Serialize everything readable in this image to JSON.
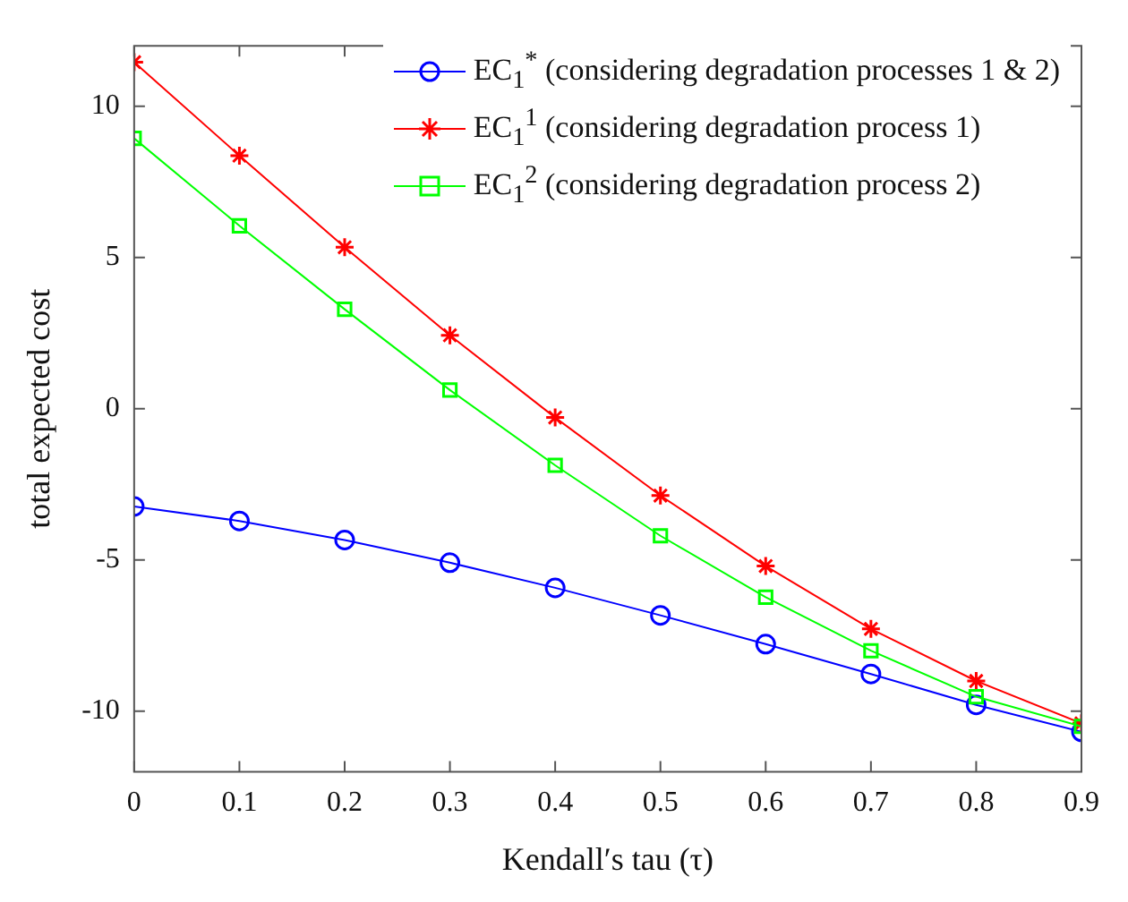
{
  "chart_data": {
    "type": "line",
    "xlabel": "Kendall′s tau (τ)",
    "ylabel": "total expected cost",
    "x": [
      0,
      0.1,
      0.2,
      0.3,
      0.4,
      0.5,
      0.6,
      0.7,
      0.8,
      0.9
    ],
    "xlim": [
      0,
      0.9
    ],
    "xticks": [
      0,
      0.1,
      0.2,
      0.3,
      0.4,
      0.5,
      0.6,
      0.7,
      0.8,
      0.9
    ],
    "ylim": [
      -12,
      12
    ],
    "yticks": [
      -10,
      -5,
      0,
      5,
      10
    ],
    "grid": false,
    "legend": "top right",
    "line_style": "solid",
    "series": [
      {
        "name": "EC$_{1}$$^{*}$ (considering degradation processes 1 & 2)",
        "color": "#0000ff",
        "marker": "circle",
        "values": [
          -3.23,
          -3.71,
          -4.34,
          -5.09,
          -5.92,
          -6.83,
          -7.78,
          -8.77,
          -9.79,
          -10.68
        ]
      },
      {
        "name": "EC$_{1}$$^{1}$ (considering degradation process 1)",
        "color": "#ff0000",
        "marker": "cross",
        "values": [
          11.46,
          8.37,
          5.34,
          2.43,
          -0.29,
          -2.87,
          -5.2,
          -7.28,
          -9.0,
          -10.4
        ]
      },
      {
        "name": "EC$_{1}$$^{2}$ (considering degradation process 2)",
        "color": "#00ff00",
        "marker": "square",
        "values": [
          8.94,
          6.05,
          3.29,
          0.62,
          -1.87,
          -4.2,
          -6.23,
          -8.0,
          -9.52,
          -10.5
        ]
      }
    ]
  }
}
